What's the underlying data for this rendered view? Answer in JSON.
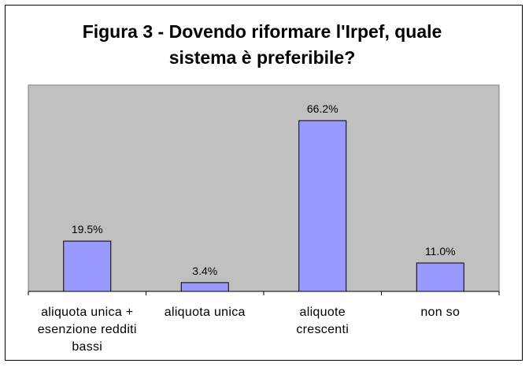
{
  "chart_data": {
    "type": "bar",
    "title_line1": "Figura 3 - Dovendo riformare l'Irpef, quale",
    "title_line2": "sistema è preferibile?",
    "categories": [
      "aliquota unica + esenzione redditi bassi",
      "aliquota unica",
      "aliquote crescenti",
      "non so"
    ],
    "category_lines": [
      [
        "aliquota unica +",
        "esenzione redditi",
        "bassi"
      ],
      [
        "aliquota unica"
      ],
      [
        "aliquote",
        "crescenti"
      ],
      [
        "non so"
      ]
    ],
    "values": [
      19.5,
      3.4,
      66.2,
      11.0
    ],
    "data_labels": [
      "19.5%",
      "3.4%",
      "66.2%",
      "11.0%"
    ],
    "ylim": [
      0,
      80
    ],
    "grid": false,
    "legend": "none",
    "colors": {
      "plot_background": "#c0c0c0",
      "bar_fill": "#9999ff",
      "bar_stroke": "#000000"
    }
  }
}
